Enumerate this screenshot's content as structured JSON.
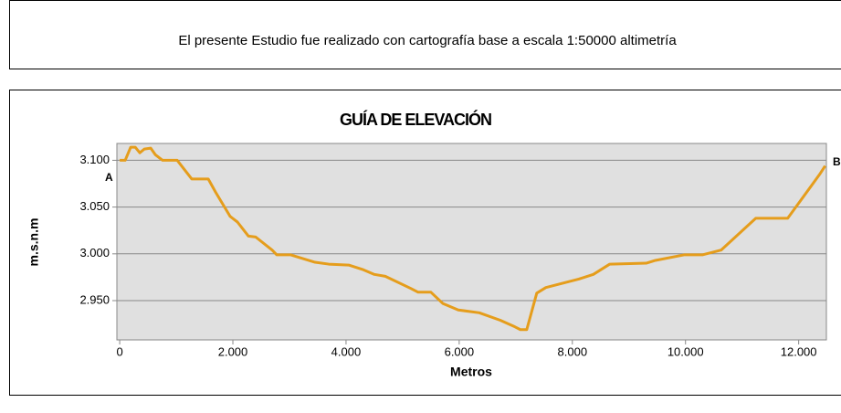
{
  "note": "El presente Estudio fue realizado con cartografía base a escala 1:50000 altimetría",
  "chart_data": {
    "type": "line",
    "title": "GUÍA DE ELEVACIÓN",
    "x_label": "Metros",
    "y_label": "m.s.n.m",
    "annotations": [
      "A",
      "B"
    ],
    "xlim": [
      -50,
      12490
    ],
    "ylim": [
      2908,
      3118
    ],
    "grid": true,
    "xticks": [
      0,
      {
        "value": 2000,
        "label": "2.000"
      },
      {
        "value": 4000,
        "label": "4.000"
      },
      {
        "value": 6000,
        "label": "6.000"
      },
      {
        "value": 8000,
        "label": "8.000"
      },
      {
        "value": 10000,
        "label": "10.000"
      },
      {
        "value": 12000,
        "label": "12.000"
      }
    ],
    "yticks": [
      {
        "value": 2950,
        "label": "2.950"
      },
      {
        "value": 3000,
        "label": "3.000"
      },
      {
        "value": 3050,
        "label": "3.050"
      },
      {
        "value": 3100,
        "label": "3.100"
      }
    ],
    "series": [
      {
        "color": "#e59d1c",
        "x": [
          0,
          97,
          194,
          274,
          355,
          435,
          548,
          629,
          758,
          1016,
          1274,
          1565,
          1694,
          1952,
          2081,
          2274,
          2403,
          2694,
          2774,
          3016,
          3452,
          3694,
          4048,
          4306,
          4500,
          4694,
          5145,
          5274,
          5500,
          5710,
          5984,
          6355,
          6726,
          6984,
          7081,
          7194,
          7371,
          7532,
          8113,
          8371,
          8661,
          9306,
          9468,
          9984,
          10306,
          10629,
          11242,
          11806,
          12371,
          12468
        ],
        "values": [
          3100,
          3100,
          3114,
          3114,
          3108,
          3112,
          3113,
          3106,
          3100,
          3100,
          3080,
          3080,
          3066,
          3040,
          3034,
          3019,
          3018,
          3004,
          2999,
          2999,
          2991,
          2989,
          2988,
          2983,
          2978,
          2976,
          2963,
          2959,
          2959,
          2947,
          2940,
          2937,
          2929,
          2922,
          2919,
          2919,
          2958,
          2964,
          2973,
          2978,
          2989,
          2990,
          2993,
          2999,
          2999,
          3004,
          3038,
          3038,
          3085,
          3094
        ]
      }
    ]
  }
}
